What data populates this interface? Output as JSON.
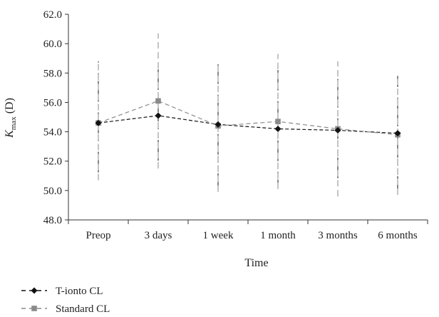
{
  "chart_data": {
    "type": "line",
    "categories": [
      "Preop",
      "3 days",
      "1 week",
      "1 month",
      "3 months",
      "6 months"
    ],
    "xlabel": "Time",
    "ylabel": {
      "base": "K",
      "sub": "max",
      "rest": " (D)"
    },
    "ylim": [
      48.0,
      62.0
    ],
    "yticks": [
      "48.0",
      "50.0",
      "52.0",
      "54.0",
      "56.0",
      "58.0",
      "60.0",
      "62.0"
    ],
    "ytick_values": [
      48,
      50,
      52,
      54,
      56,
      58,
      60,
      62
    ],
    "grid": false,
    "legend_position": "bottom-left",
    "series": [
      {
        "name": "T-ionto CL",
        "color": "#111111",
        "marker": "diamond",
        "values": [
          54.6,
          55.1,
          54.5,
          54.2,
          54.1,
          53.9
        ],
        "error_low": [
          50.7,
          51.5,
          50.3,
          50.4,
          50.3,
          50.1
        ],
        "error_high": [
          58.8,
          58.7,
          58.6,
          58.2,
          57.9,
          57.8
        ]
      },
      {
        "name": "Standard CL",
        "color": "#8a8a8a",
        "marker": "square",
        "values": [
          54.6,
          56.1,
          54.4,
          54.7,
          54.2,
          53.8
        ],
        "error_low": [
          50.7,
          51.5,
          49.9,
          50.1,
          49.6,
          49.7
        ],
        "error_high": [
          58.8,
          60.7,
          58.7,
          59.3,
          58.8,
          57.6
        ]
      }
    ]
  }
}
